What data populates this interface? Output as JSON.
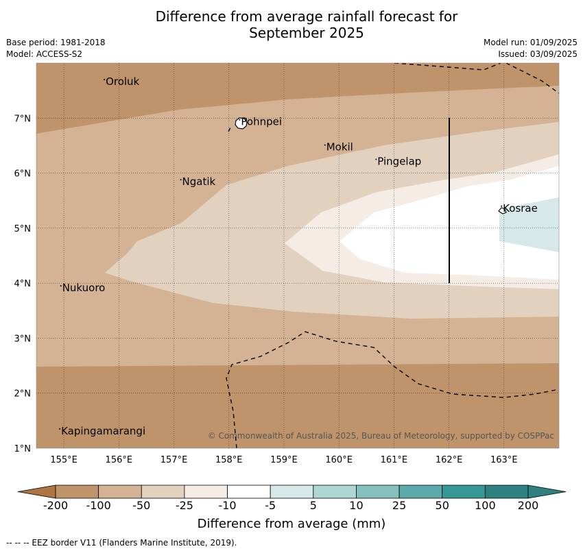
{
  "title": {
    "line1": "Difference from average rainfall forecast for",
    "line2": "September 2025"
  },
  "meta_left": {
    "base_period": "Base period: 1981-2018",
    "model": "Model: ACCESS-S2"
  },
  "meta_right": {
    "model_run": "Model run: 01/09/2025",
    "issued": "Issued: 03/09/2025"
  },
  "map": {
    "lon_range": [
      154.5,
      164.0
    ],
    "lat_range": [
      1.0,
      8.0
    ],
    "lon_ticks": [
      155,
      156,
      157,
      158,
      159,
      160,
      161,
      162,
      163
    ],
    "lon_tick_labels": [
      "155°E",
      "156°E",
      "157°E",
      "158°E",
      "159°E",
      "160°E",
      "161°E",
      "162°E",
      "163°E"
    ],
    "lat_ticks": [
      1,
      2,
      3,
      4,
      5,
      6,
      7
    ],
    "lat_tick_labels": [
      "1°N",
      "2°N",
      "3°N",
      "4°N",
      "5°N",
      "6°N",
      "7°N"
    ],
    "gridlines": "dotted",
    "places": [
      {
        "name": "Oroluk",
        "lon": 155.76,
        "lat": 7.6
      },
      {
        "name": "Pohnpei",
        "lon": 158.22,
        "lat": 6.87
      },
      {
        "name": "Mokil",
        "lon": 159.77,
        "lat": 6.41
      },
      {
        "name": "Pingelap",
        "lon": 160.7,
        "lat": 6.15
      },
      {
        "name": "Ngatik",
        "lon": 157.15,
        "lat": 5.78
      },
      {
        "name": "Kosrae",
        "lon": 162.98,
        "lat": 5.3
      },
      {
        "name": "Nukuoro",
        "lon": 154.97,
        "lat": 3.85
      },
      {
        "name": "Kapingamarangi",
        "lon": 154.95,
        "lat": 1.25
      }
    ],
    "copyright": "© Commonwealth of Australia 2025, Bureau of Meteorology, supported by COSPPac"
  },
  "legend": {
    "boundaries": [
      "-200",
      "-100",
      "-50",
      "-25",
      "-10",
      "-5",
      "5",
      "10",
      "25",
      "50",
      "100",
      "200"
    ],
    "colors": [
      "#ad7541",
      "#c0946a",
      "#d3b393",
      "#e3d1c0",
      "#f5ece6",
      "#ffffff",
      "#d6e9e8",
      "#aed6d3",
      "#85c2bd",
      "#5babab",
      "#359897",
      "#2e8180"
    ],
    "title": "Difference from average (mm)"
  },
  "footnote": "--  --  -- EEZ border V11 (Flanders Marine Institute, 2019)."
}
